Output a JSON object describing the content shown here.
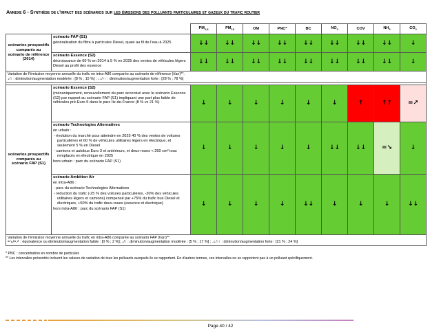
{
  "title": {
    "prefix": "Annexe 6 - Synthèse de l'impact des scénarios sur ",
    "underlined": "les émissions des polluants particulaires et gazeux du trafic routier"
  },
  "table": {
    "columns": [
      {
        "name": "PM",
        "sub": "2,5"
      },
      {
        "name": "PM",
        "sub": "10"
      },
      {
        "name": "OM"
      },
      {
        "name": "PNC*"
      },
      {
        "name": "BC"
      },
      {
        "name": "NO",
        "sub": "2"
      },
      {
        "name": "COV"
      },
      {
        "name": "NH",
        "sub": "3"
      },
      {
        "name": "CO",
        "sub": "2"
      }
    ],
    "groups": [
      {
        "label": "scénarios prospectifs comparés au scénario de référence (2014)",
        "rows": [
          {
            "scenario": "scénario FAP (S1)",
            "description": [
              "généralisation du filtre à particules Diesel, quasi au fil de l'eau à 2025"
            ],
            "cells": [
              {
                "symbol": "↓↓",
                "color": "#66cc33"
              },
              {
                "symbol": "↓↓",
                "color": "#66cc33"
              },
              {
                "symbol": "↓↓",
                "color": "#66cc33"
              },
              {
                "symbol": "↓↓",
                "color": "#66cc33"
              },
              {
                "symbol": "↓↓",
                "color": "#66cc33"
              },
              {
                "symbol": "↓↓",
                "color": "#66cc33"
              },
              {
                "symbol": "↓↓",
                "color": "#66cc33"
              },
              {
                "symbol": "↓↓",
                "color": "#66cc33"
              },
              {
                "symbol": "↓",
                "color": "#66cc33"
              }
            ]
          },
          {
            "scenario": "scénario Essence (S2)",
            "description": [
              "décroissance de 60 % en 2014 à 5 % en 2025 des ventes de véhicules légers Diesel au profit des essence"
            ],
            "cells": [
              {
                "symbol": "↓↓",
                "color": "#66cc33"
              },
              {
                "symbol": "↓↓",
                "color": "#66cc33"
              },
              {
                "symbol": "↓↓",
                "color": "#66cc33"
              },
              {
                "symbol": "↓↓",
                "color": "#66cc33"
              },
              {
                "symbol": "↓↓",
                "color": "#66cc33"
              },
              {
                "symbol": "↓↓",
                "color": "#66cc33"
              },
              {
                "symbol": "↓↓",
                "color": "#66cc33"
              },
              {
                "symbol": "↓↓",
                "color": "#66cc33"
              },
              {
                "symbol": "↓",
                "color": "#66cc33"
              }
            ]
          }
        ],
        "legend": [
          "Variation de l'émission moyenne annuelle du trafic en intra-A86 comparée au scénario de référence (t/an)**.",
          "↓/↑ : diminution/augmentation modérée : [8 % ; 15 %] ; ↓↓/↑↑ : diminution/augmentation forte : [28 % ; 78 %]"
        ]
      },
      {
        "label": "scénarios prospectifs comparés au scénario FAP (S1)",
        "rows": [
          {
            "scenario": "scénario Essence (S2)",
            "description": [
              "(mécaniquement, renouvellement du parc accentué avec le scénario Essence (S2) par rapport au scénario FAP (S1) impliquant une part plus faible de véhicules pré-Euro 5 dans le parc Ile-de-France (8 % vs 21 %)"
            ],
            "cells": [
              {
                "symbol": "↓",
                "color": "#66cc33"
              },
              {
                "symbol": "↓",
                "color": "#66cc33"
              },
              {
                "symbol": "↓",
                "color": "#66cc33"
              },
              {
                "symbol": "↓",
                "color": "#66cc33"
              },
              {
                "symbol": "↓",
                "color": "#66cc33"
              },
              {
                "symbol": "↓",
                "color": "#66cc33"
              },
              {
                "symbol": "↑",
                "color": "#ff0000"
              },
              {
                "symbol": "↑↑",
                "color": "#ff0000"
              },
              {
                "symbol": "=↗",
                "color": "#ffdede"
              }
            ]
          },
          {
            "scenario": "scénario Technologies Alternatives",
            "description": [
              "en urbain :",
              {
                "bullet": "évolution du marché pour atteindre en 2025 40 % des ventes de voitures particulières et 60 % de véhicules utilitaires légers en électrique, et seulement 5 % en Diesel"
              },
              {
                "bullet": "camions et autobus Euro 3 et antérieurs, et deux-roues < 250 cm³ tous remplacés en électrique en 2025"
              },
              "hors urbain : parc du scénario FAP (S1)"
            ],
            "cells": [
              {
                "symbol": "↓",
                "color": "#66cc33"
              },
              {
                "symbol": "↓",
                "color": "#66cc33"
              },
              {
                "symbol": "↓",
                "color": "#66cc33"
              },
              {
                "symbol": "↓",
                "color": "#66cc33"
              },
              {
                "symbol": "↓",
                "color": "#66cc33"
              },
              {
                "symbol": "↓↓",
                "color": "#66cc33"
              },
              {
                "symbol": "↓↓",
                "color": "#66cc33"
              },
              {
                "symbol": "=↘",
                "color": "#d5efbf"
              },
              {
                "symbol": "↓",
                "color": "#66cc33"
              }
            ]
          },
          {
            "scenario": "scénario Ambition Air",
            "description": [
              "en intra-A86 :",
              {
                "bullet": "parc du scénario Technologies Alternatives"
              },
              {
                "bullet": "réduction du trafic (-25 % des voitures particulières, -20% des véhicules utilitaires légers et camions) compensé par +75% du trafic bus Diesel et électriques, +50% du trafic deux-roues (essence et électrique)"
              },
              "hors intra-A86 : parc du scénario FAP (S1)"
            ],
            "cells": [
              {
                "symbol": "↓",
                "color": "#66cc33"
              },
              {
                "symbol": "↓",
                "color": "#66cc33"
              },
              {
                "symbol": "↓",
                "color": "#66cc33"
              },
              {
                "symbol": "↓",
                "color": "#66cc33"
              },
              {
                "symbol": "↓↓",
                "color": "#66cc33"
              },
              {
                "symbol": "↓",
                "color": "#66cc33"
              },
              {
                "symbol": "↓",
                "color": "#66cc33"
              },
              {
                "symbol": "↓",
                "color": "#66cc33"
              },
              {
                "symbol": "↓↓",
                "color": "#66cc33"
              }
            ]
          }
        ],
        "legend": [
          "Variation de l'émission moyenne annuelle du trafic en intra-A86 comparée au scénario FAP (t/an)**.",
          "=↘/=↗ : équivalence ou diminution/augmentation faible : [0 % ; 2 %]; ↓/↑ : diminution/augmentation modérée : [5 % ; 17 %] ; ↓↓/↑↑ : diminution/augmentation forte : [21 % ; 24 %]"
        ]
      }
    ]
  },
  "footnotes": [
    "* PNC : concentration en nombre de particules",
    "** Les intervalles présentés incluent les valeurs de variation de tous les polluants auxquels ils se rapportent. En d'autres termes, ces intervalles ne se rapportent pas à un polluant spécifiquement."
  ],
  "footer": {
    "page": "Page 40 / 42"
  }
}
